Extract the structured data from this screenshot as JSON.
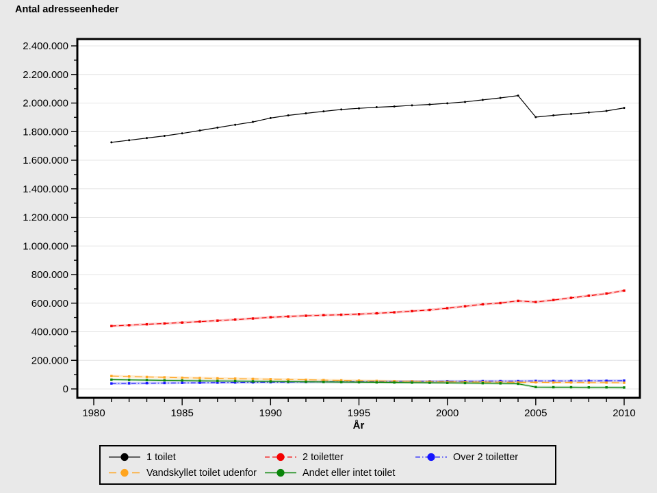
{
  "figure": {
    "title": "Antal adresseenheder",
    "xlabel": "År"
  },
  "chart_data": {
    "type": "line",
    "title": "Antal adresseenheder",
    "xlabel": "År",
    "ylabel": "Antal adresseenheder",
    "x": [
      1981,
      1982,
      1983,
      1984,
      1985,
      1986,
      1987,
      1988,
      1989,
      1990,
      1991,
      1992,
      1993,
      1994,
      1995,
      1996,
      1997,
      1998,
      1999,
      2000,
      2001,
      2002,
      2003,
      2004,
      2005,
      2006,
      2007,
      2008,
      2009,
      2010
    ],
    "xlim": [
      1979.1,
      2010.9
    ],
    "ylim": [
      0,
      2400000
    ],
    "xticks_labeled": [
      1980,
      1985,
      1990,
      1995,
      2000,
      2005,
      2010
    ],
    "xtick_minor_interval": 1,
    "ytick_interval": 200000,
    "ytick_minor_interval": 100000,
    "grid": "horizontal-major",
    "legend_position": "bottom",
    "plot_bg": "#ffffff",
    "page_bg": "#e9e9e9",
    "grid_color": "#e4e4e4",
    "series": [
      {
        "name": "1 toilet",
        "color": "#000000",
        "dash": "",
        "halo": false,
        "values": [
          1725000,
          1740000,
          1755000,
          1770000,
          1788000,
          1808000,
          1828000,
          1848000,
          1868000,
          1895000,
          1914000,
          1928000,
          1942000,
          1955000,
          1963000,
          1971000,
          1976000,
          1984000,
          1990000,
          1998000,
          2008000,
          2022000,
          2036000,
          2052000,
          1902000,
          1914000,
          1924000,
          1934000,
          1945000,
          1966000
        ]
      },
      {
        "name": "2 toiletter",
        "color": "#f40000",
        "dash": "7 4",
        "halo": true,
        "values": [
          440000,
          446000,
          452000,
          458000,
          464000,
          471000,
          478000,
          485000,
          493000,
          501000,
          507000,
          512000,
          516000,
          519000,
          523000,
          529000,
          536000,
          544000,
          553000,
          565000,
          578000,
          592000,
          601000,
          616000,
          608000,
          622000,
          637000,
          652000,
          667000,
          688000
        ]
      },
      {
        "name": "Over 2 toiletter",
        "color": "#1515ff",
        "dash": "7 3 1.5 3",
        "halo": true,
        "values": [
          38000,
          39000,
          40000,
          41000,
          42000,
          43000,
          44000,
          45000,
          46000,
          47000,
          48000,
          49000,
          50000,
          50000,
          51000,
          52000,
          52000,
          53000,
          53000,
          54000,
          54000,
          55000,
          55000,
          55000,
          56000,
          56000,
          56000,
          57000,
          57000,
          58000
        ]
      },
      {
        "name": "Vandskyllet toilet udenfor",
        "color": "#ffa51f",
        "dash": "11 6",
        "halo": true,
        "values": [
          90000,
          87000,
          84000,
          81000,
          78000,
          76000,
          74000,
          72000,
          70000,
          68000,
          66000,
          64000,
          62000,
          60000,
          58000,
          56000,
          54000,
          53000,
          51000,
          50000,
          49000,
          48000,
          47000,
          46000,
          46000,
          45000,
          45000,
          44000,
          44000,
          43000
        ]
      },
      {
        "name": "Andet eller intet toilet",
        "color": "#0a850a",
        "dash": "",
        "halo": true,
        "values": [
          65000,
          63000,
          62000,
          60000,
          59000,
          57000,
          56000,
          55000,
          53000,
          52000,
          51000,
          50000,
          49000,
          48000,
          47000,
          46000,
          45000,
          44000,
          43000,
          42000,
          41000,
          40000,
          39000,
          36000,
          13000,
          12000,
          12000,
          11000,
          11000,
          10000
        ]
      }
    ]
  }
}
